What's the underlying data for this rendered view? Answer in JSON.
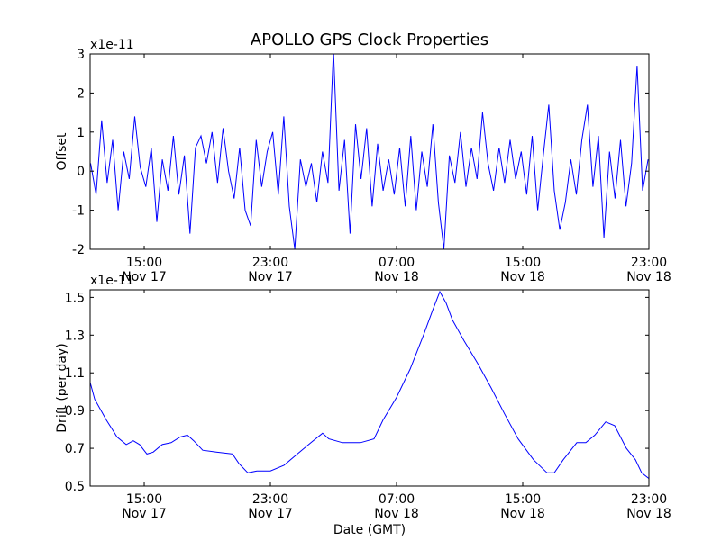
{
  "title": "APOLLO GPS Clock Properties",
  "chart_data": [
    {
      "type": "line",
      "name": "offset",
      "ylabel": "Offset",
      "xlabel": "",
      "offset_text": "x1e-11",
      "x_units": "hours since Nov 17 00:00 GMT",
      "xlim": [
        11.57,
        47.0
      ],
      "ylim": [
        -2,
        3
      ],
      "yticks": [
        3,
        2,
        1,
        0,
        -1,
        -2
      ],
      "ytick_labels": [
        "3",
        "2",
        "1",
        "0",
        "-1",
        "-2"
      ],
      "xticks": [
        15,
        23,
        31,
        39,
        47
      ],
      "xtick_labels": [
        [
          "15:00",
          "Nov 17"
        ],
        [
          "23:00",
          "Nov 17"
        ],
        [
          "07:00",
          "Nov 18"
        ],
        [
          "15:00",
          "Nov 18"
        ],
        [
          "23:00",
          "Nov 18"
        ]
      ],
      "color": "#0000ff",
      "x_start": 11.6,
      "x_step": 0.35,
      "values": [
        0.2,
        -0.6,
        1.3,
        -0.3,
        0.8,
        -1.0,
        0.5,
        -0.2,
        1.4,
        0.1,
        -0.4,
        0.6,
        -1.3,
        0.3,
        -0.5,
        0.9,
        -0.6,
        0.4,
        -1.6,
        0.6,
        0.9,
        0.2,
        1.0,
        -0.3,
        1.1,
        0.0,
        -0.7,
        0.6,
        -1.0,
        -1.4,
        0.8,
        -0.4,
        0.5,
        1.0,
        -0.6,
        1.4,
        -0.9,
        -2.0,
        0.3,
        -0.4,
        0.2,
        -0.8,
        0.5,
        -0.3,
        3.1,
        -0.5,
        0.8,
        -1.6,
        1.2,
        -0.2,
        1.1,
        -0.9,
        0.7,
        -0.5,
        0.3,
        -0.6,
        0.6,
        -0.9,
        0.9,
        -1.0,
        0.5,
        -0.4,
        1.2,
        -0.8,
        -2.0,
        0.4,
        -0.3,
        1.0,
        -0.4,
        0.6,
        -0.2,
        1.5,
        0.2,
        -0.5,
        0.6,
        -0.3,
        0.8,
        -0.2,
        0.5,
        -0.6,
        0.9,
        -1.0,
        0.4,
        1.7,
        -0.5,
        -1.5,
        -0.8,
        0.3,
        -0.6,
        0.8,
        1.7,
        -0.4,
        0.9,
        -1.7,
        0.5,
        -0.7,
        0.8,
        -0.9,
        0.2,
        2.7,
        -0.5,
        0.3
      ]
    },
    {
      "type": "line",
      "name": "drift",
      "ylabel": "Drift (per day)",
      "xlabel": "Date (GMT)",
      "offset_text": "x1e-11",
      "x_units": "hours since Nov 17 00:00 GMT",
      "xlim": [
        11.57,
        47.0
      ],
      "ylim": [
        0.5,
        1.54
      ],
      "yticks": [
        1.5,
        1.3,
        1.1,
        0.9,
        0.7,
        0.5
      ],
      "ytick_labels": [
        "1.5",
        "1.3",
        "1.1",
        "0.9",
        "0.7",
        "0.5"
      ],
      "xticks": [
        15,
        23,
        31,
        39,
        47
      ],
      "xtick_labels": [
        [
          "15:00",
          "Nov 17"
        ],
        [
          "23:00",
          "Nov 17"
        ],
        [
          "07:00",
          "Nov 18"
        ],
        [
          "15:00",
          "Nov 18"
        ],
        [
          "23:00",
          "Nov 18"
        ]
      ],
      "color": "#0000ff",
      "x": [
        11.57,
        11.86,
        12.6,
        13.28,
        13.86,
        14.31,
        14.71,
        15.17,
        15.57,
        16.14,
        16.71,
        17.28,
        17.74,
        18.14,
        18.71,
        19.57,
        20.6,
        21.0,
        21.57,
        22.14,
        23.0,
        23.86,
        24.71,
        25.57,
        26.31,
        26.71,
        27.57,
        28.71,
        29.57,
        30.14,
        31.0,
        31.86,
        32.71,
        33.28,
        33.74,
        34.14,
        34.54,
        35.28,
        36.14,
        37.0,
        37.86,
        38.71,
        39.68,
        40.54,
        41.0,
        41.57,
        42.43,
        43.0,
        43.57,
        44.26,
        44.83,
        45.57,
        46.14,
        46.54,
        47.0
      ],
      "y": [
        1.05,
        0.96,
        0.85,
        0.76,
        0.72,
        0.74,
        0.72,
        0.67,
        0.68,
        0.72,
        0.73,
        0.76,
        0.77,
        0.74,
        0.69,
        0.68,
        0.67,
        0.62,
        0.57,
        0.58,
        0.58,
        0.61,
        0.67,
        0.73,
        0.78,
        0.75,
        0.73,
        0.73,
        0.75,
        0.85,
        0.97,
        1.12,
        1.3,
        1.43,
        1.53,
        1.47,
        1.38,
        1.27,
        1.15,
        1.02,
        0.88,
        0.75,
        0.64,
        0.57,
        0.57,
        0.64,
        0.73,
        0.73,
        0.77,
        0.84,
        0.82,
        0.7,
        0.64,
        0.57,
        0.54
      ]
    }
  ]
}
